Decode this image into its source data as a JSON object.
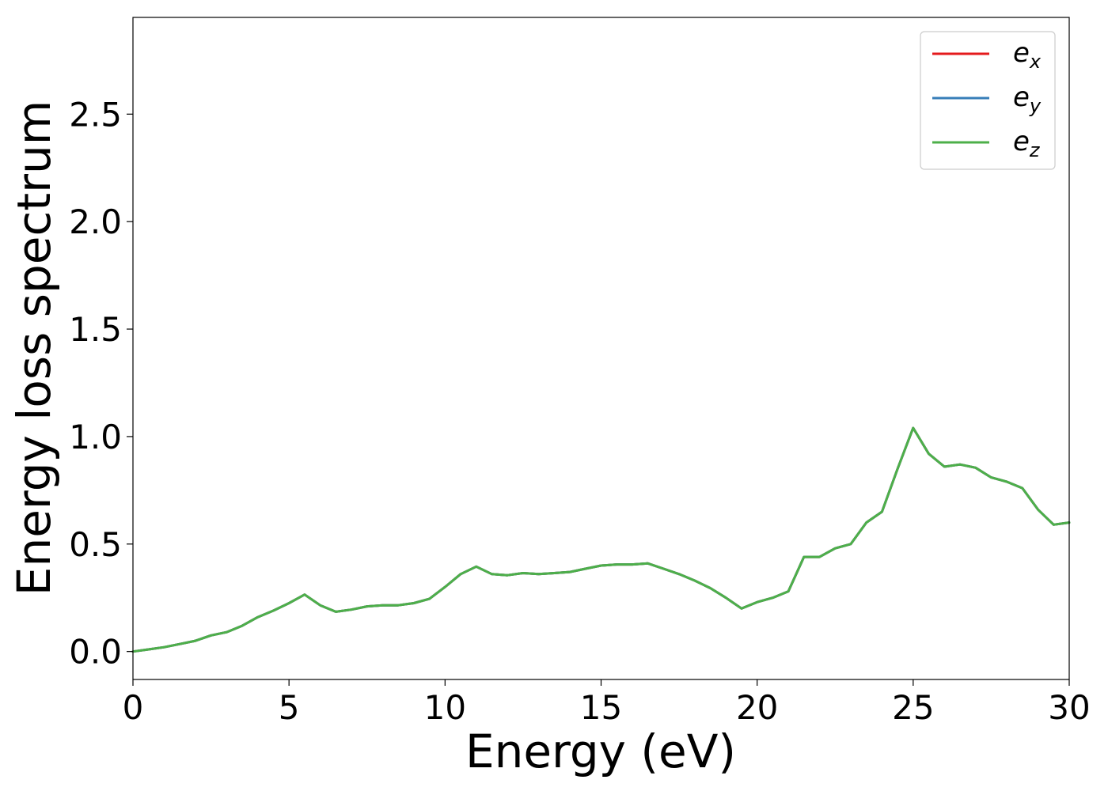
{
  "chart_data": {
    "type": "line",
    "xlabel": "Energy (eV)",
    "ylabel": "Energy loss spectrum",
    "xlim": [
      0,
      30
    ],
    "ylim": [
      -0.13,
      2.95
    ],
    "xticks": [
      "0",
      "5",
      "10",
      "15",
      "20",
      "25",
      "30"
    ],
    "yticks": [
      "0.0",
      "0.5",
      "1.0",
      "1.5",
      "2.0",
      "2.5"
    ],
    "grid": false,
    "legend_position": "top-right",
    "x": [
      0,
      0.5,
      1.0,
      1.5,
      2.0,
      2.5,
      3.0,
      3.5,
      4.0,
      4.5,
      5.0,
      5.5,
      6.0,
      6.5,
      7.0,
      7.5,
      8.0,
      8.5,
      9.0,
      9.5,
      10.0,
      10.5,
      11.0,
      11.5,
      12.0,
      12.5,
      13.0,
      13.5,
      14.0,
      14.5,
      15.0,
      15.5,
      16.0,
      16.5,
      17.0,
      17.5,
      18.0,
      18.5,
      19.0,
      19.5,
      20.0,
      20.5,
      21.0,
      21.5,
      22.0,
      22.5,
      23.0,
      23.5,
      24.0,
      24.5,
      25.0,
      25.5,
      26.0,
      26.5,
      27.0,
      27.5,
      28.0,
      28.5,
      29.0,
      29.5,
      30.0
    ],
    "series": [
      {
        "name": "e_x",
        "label_base": "e",
        "label_sub": "x",
        "color": "#e41a1c",
        "values": [
          0.0,
          0.01,
          0.02,
          0.035,
          0.05,
          0.075,
          0.09,
          0.12,
          0.16,
          0.19,
          0.225,
          0.265,
          0.215,
          0.185,
          0.195,
          0.21,
          0.215,
          0.215,
          0.225,
          0.245,
          0.3,
          0.36,
          0.395,
          0.36,
          0.355,
          0.365,
          0.36,
          0.365,
          0.37,
          0.385,
          0.4,
          0.405,
          0.405,
          0.41,
          0.385,
          0.36,
          0.33,
          0.295,
          0.25,
          0.2,
          0.23,
          0.25,
          0.28,
          0.44,
          0.44,
          0.48,
          0.5,
          0.6,
          0.65,
          0.85,
          1.04,
          0.92,
          0.86,
          0.87,
          0.855,
          0.81,
          0.79,
          0.76,
          0.66,
          0.59,
          0.6
        ]
      },
      {
        "name": "e_y",
        "label_base": "e",
        "label_sub": "y",
        "color": "#377eb8",
        "values": [
          0.0,
          0.01,
          0.02,
          0.035,
          0.05,
          0.075,
          0.09,
          0.12,
          0.16,
          0.19,
          0.225,
          0.265,
          0.215,
          0.185,
          0.195,
          0.21,
          0.215,
          0.215,
          0.225,
          0.245,
          0.3,
          0.36,
          0.395,
          0.36,
          0.355,
          0.365,
          0.36,
          0.365,
          0.37,
          0.385,
          0.4,
          0.405,
          0.405,
          0.41,
          0.385,
          0.36,
          0.33,
          0.295,
          0.25,
          0.2,
          0.23,
          0.25,
          0.28,
          0.44,
          0.44,
          0.48,
          0.5,
          0.6,
          0.65,
          0.85,
          1.04,
          0.92,
          0.86,
          0.87,
          0.855,
          0.81,
          0.79,
          0.76,
          0.66,
          0.59,
          0.6
        ]
      },
      {
        "name": "e_z",
        "label_base": "e",
        "label_sub": "z",
        "color": "#4daf4a",
        "values": [
          0.0,
          0.01,
          0.02,
          0.035,
          0.05,
          0.075,
          0.09,
          0.12,
          0.16,
          0.19,
          0.225,
          0.265,
          0.215,
          0.185,
          0.195,
          0.21,
          0.215,
          0.215,
          0.225,
          0.245,
          0.3,
          0.36,
          0.395,
          0.36,
          0.355,
          0.365,
          0.36,
          0.365,
          0.37,
          0.385,
          0.4,
          0.405,
          0.405,
          0.41,
          0.385,
          0.36,
          0.33,
          0.295,
          0.25,
          0.2,
          0.23,
          0.25,
          0.28,
          0.44,
          0.44,
          0.48,
          0.5,
          0.6,
          0.65,
          0.85,
          1.04,
          0.92,
          0.86,
          0.87,
          0.855,
          0.81,
          0.79,
          0.76,
          0.66,
          0.59,
          0.6
        ]
      }
    ]
  }
}
